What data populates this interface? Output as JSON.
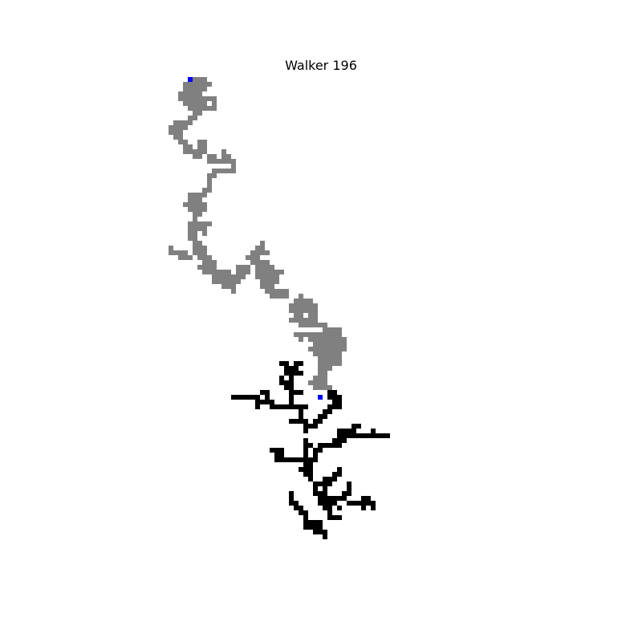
{
  "title": "Walker 196",
  "colors": {
    "background": "#ffffff",
    "walker_path": "#808080",
    "cluster": "#000000",
    "marker": "#0000ff"
  },
  "walker_path": [
    [
      40,
      0
    ],
    [
      41,
      0
    ],
    [
      42,
      0
    ],
    [
      38,
      1
    ],
    [
      39,
      1
    ],
    [
      40,
      1
    ],
    [
      41,
      1
    ],
    [
      42,
      1
    ],
    [
      43,
      1
    ],
    [
      38,
      2
    ],
    [
      39,
      2
    ],
    [
      40,
      2
    ],
    [
      41,
      2
    ],
    [
      42,
      2
    ],
    [
      37,
      3
    ],
    [
      38,
      3
    ],
    [
      39,
      3
    ],
    [
      40,
      3
    ],
    [
      41,
      3
    ],
    [
      37,
      4
    ],
    [
      38,
      4
    ],
    [
      39,
      4
    ],
    [
      40,
      4
    ],
    [
      41,
      4
    ],
    [
      42,
      4
    ],
    [
      43,
      4
    ],
    [
      44,
      4
    ],
    [
      38,
      5
    ],
    [
      39,
      5
    ],
    [
      40,
      5
    ],
    [
      41,
      5
    ],
    [
      42,
      5
    ],
    [
      44,
      5
    ],
    [
      39,
      6
    ],
    [
      40,
      6
    ],
    [
      41,
      6
    ],
    [
      42,
      6
    ],
    [
      43,
      6
    ],
    [
      44,
      6
    ],
    [
      40,
      7
    ],
    [
      41,
      7
    ],
    [
      39,
      8
    ],
    [
      40,
      8
    ],
    [
      36,
      9
    ],
    [
      37,
      9
    ],
    [
      38,
      9
    ],
    [
      39,
      9
    ],
    [
      35,
      10
    ],
    [
      36,
      10
    ],
    [
      37,
      10
    ],
    [
      38,
      10
    ],
    [
      35,
      11
    ],
    [
      36,
      11
    ],
    [
      37,
      11
    ],
    [
      36,
      12
    ],
    [
      37,
      12
    ],
    [
      37,
      13
    ],
    [
      38,
      13
    ],
    [
      41,
      13
    ],
    [
      42,
      13
    ],
    [
      38,
      14
    ],
    [
      39,
      14
    ],
    [
      41,
      14
    ],
    [
      42,
      14
    ],
    [
      38,
      15
    ],
    [
      39,
      15
    ],
    [
      40,
      15
    ],
    [
      41,
      15
    ],
    [
      42,
      15
    ],
    [
      46,
      15
    ],
    [
      40,
      16
    ],
    [
      41,
      16
    ],
    [
      43,
      16
    ],
    [
      44,
      16
    ],
    [
      46,
      16
    ],
    [
      47,
      16
    ],
    [
      43,
      17
    ],
    [
      44,
      17
    ],
    [
      45,
      17
    ],
    [
      46,
      17
    ],
    [
      47,
      17
    ],
    [
      48,
      17
    ],
    [
      48,
      18
    ],
    [
      44,
      19
    ],
    [
      45,
      19
    ],
    [
      46,
      19
    ],
    [
      47,
      19
    ],
    [
      48,
      19
    ],
    [
      43,
      20
    ],
    [
      44,
      20
    ],
    [
      43,
      21
    ],
    [
      43,
      22
    ],
    [
      42,
      23
    ],
    [
      43,
      23
    ],
    [
      39,
      24
    ],
    [
      40,
      24
    ],
    [
      41,
      24
    ],
    [
      42,
      24
    ],
    [
      39,
      25
    ],
    [
      40,
      25
    ],
    [
      41,
      25
    ],
    [
      38,
      26
    ],
    [
      39,
      26
    ],
    [
      40,
      26
    ],
    [
      41,
      26
    ],
    [
      42,
      26
    ],
    [
      39,
      27
    ],
    [
      40,
      27
    ],
    [
      41,
      27
    ],
    [
      42,
      27
    ],
    [
      40,
      28
    ],
    [
      41,
      28
    ],
    [
      40,
      29
    ],
    [
      39,
      30
    ],
    [
      40,
      30
    ],
    [
      41,
      30
    ],
    [
      42,
      30
    ],
    [
      43,
      30
    ],
    [
      39,
      31
    ],
    [
      40,
      31
    ],
    [
      41,
      31
    ],
    [
      42,
      31
    ],
    [
      39,
      32
    ],
    [
      40,
      32
    ],
    [
      42,
      32
    ],
    [
      39,
      33
    ],
    [
      40,
      33
    ],
    [
      40,
      34
    ],
    [
      41,
      34
    ],
    [
      54,
      34
    ],
    [
      35,
      35
    ],
    [
      40,
      35
    ],
    [
      41,
      35
    ],
    [
      42,
      35
    ],
    [
      53,
      35
    ],
    [
      54,
      35
    ],
    [
      35,
      36
    ],
    [
      36,
      36
    ],
    [
      37,
      36
    ],
    [
      38,
      36
    ],
    [
      40,
      36
    ],
    [
      41,
      36
    ],
    [
      42,
      36
    ],
    [
      52,
      36
    ],
    [
      53,
      36
    ],
    [
      54,
      36
    ],
    [
      55,
      36
    ],
    [
      37,
      37
    ],
    [
      38,
      37
    ],
    [
      39,
      37
    ],
    [
      41,
      37
    ],
    [
      42,
      37
    ],
    [
      43,
      37
    ],
    [
      51,
      37
    ],
    [
      52,
      37
    ],
    [
      53,
      37
    ],
    [
      42,
      38
    ],
    [
      43,
      38
    ],
    [
      44,
      38
    ],
    [
      52,
      38
    ],
    [
      53,
      38
    ],
    [
      54,
      38
    ],
    [
      55,
      38
    ],
    [
      41,
      39
    ],
    [
      42,
      39
    ],
    [
      43,
      39
    ],
    [
      44,
      39
    ],
    [
      49,
      39
    ],
    [
      50,
      39
    ],
    [
      51,
      39
    ],
    [
      53,
      39
    ],
    [
      54,
      39
    ],
    [
      55,
      39
    ],
    [
      56,
      39
    ],
    [
      42,
      40
    ],
    [
      43,
      40
    ],
    [
      44,
      40
    ],
    [
      45,
      40
    ],
    [
      46,
      40
    ],
    [
      47,
      40
    ],
    [
      49,
      40
    ],
    [
      50,
      40
    ],
    [
      51,
      40
    ],
    [
      53,
      40
    ],
    [
      54,
      40
    ],
    [
      55,
      40
    ],
    [
      56,
      40
    ],
    [
      57,
      40
    ],
    [
      58,
      40
    ],
    [
      44,
      41
    ],
    [
      45,
      41
    ],
    [
      46,
      41
    ],
    [
      47,
      41
    ],
    [
      48,
      41
    ],
    [
      49,
      41
    ],
    [
      50,
      41
    ],
    [
      53,
      41
    ],
    [
      54,
      41
    ],
    [
      55,
      41
    ],
    [
      56,
      41
    ],
    [
      57,
      41
    ],
    [
      44,
      42
    ],
    [
      45,
      42
    ],
    [
      46,
      42
    ],
    [
      47,
      42
    ],
    [
      48,
      42
    ],
    [
      49,
      42
    ],
    [
      54,
      42
    ],
    [
      55,
      42
    ],
    [
      56,
      42
    ],
    [
      57,
      42
    ],
    [
      46,
      43
    ],
    [
      47,
      43
    ],
    [
      48,
      43
    ],
    [
      54,
      43
    ],
    [
      55,
      43
    ],
    [
      56,
      43
    ],
    [
      48,
      44
    ],
    [
      55,
      44
    ],
    [
      56,
      44
    ],
    [
      57,
      44
    ],
    [
      58,
      44
    ],
    [
      59,
      44
    ],
    [
      56,
      45
    ],
    [
      57,
      45
    ],
    [
      58,
      45
    ],
    [
      59,
      45
    ],
    [
      62,
      45
    ],
    [
      61,
      46
    ],
    [
      62,
      46
    ],
    [
      63,
      46
    ],
    [
      64,
      46
    ],
    [
      60,
      47
    ],
    [
      61,
      47
    ],
    [
      62,
      47
    ],
    [
      63,
      47
    ],
    [
      64,
      47
    ],
    [
      65,
      47
    ],
    [
      60,
      48
    ],
    [
      61,
      48
    ],
    [
      62,
      48
    ],
    [
      63,
      48
    ],
    [
      64,
      48
    ],
    [
      65,
      48
    ],
    [
      61,
      49
    ],
    [
      62,
      49
    ],
    [
      64,
      49
    ],
    [
      65,
      49
    ],
    [
      60,
      50
    ],
    [
      61,
      50
    ],
    [
      62,
      50
    ],
    [
      63,
      50
    ],
    [
      64,
      50
    ],
    [
      65,
      50
    ],
    [
      62,
      51
    ],
    [
      63,
      51
    ],
    [
      64,
      51
    ],
    [
      65,
      51
    ],
    [
      66,
      51
    ],
    [
      67,
      51
    ],
    [
      67,
      52
    ],
    [
      68,
      52
    ],
    [
      69,
      52
    ],
    [
      70,
      52
    ],
    [
      61,
      53
    ],
    [
      62,
      53
    ],
    [
      63,
      53
    ],
    [
      64,
      53
    ],
    [
      65,
      53
    ],
    [
      66,
      53
    ],
    [
      67,
      53
    ],
    [
      68,
      53
    ],
    [
      69,
      53
    ],
    [
      70,
      53
    ],
    [
      62,
      54
    ],
    [
      64,
      54
    ],
    [
      65,
      54
    ],
    [
      66,
      54
    ],
    [
      67,
      54
    ],
    [
      68,
      54
    ],
    [
      69,
      54
    ],
    [
      70,
      54
    ],
    [
      71,
      54
    ],
    [
      65,
      55
    ],
    [
      66,
      55
    ],
    [
      67,
      55
    ],
    [
      68,
      55
    ],
    [
      69,
      55
    ],
    [
      70,
      55
    ],
    [
      71,
      55
    ],
    [
      64,
      56
    ],
    [
      65,
      56
    ],
    [
      66,
      56
    ],
    [
      67,
      56
    ],
    [
      68,
      56
    ],
    [
      69,
      56
    ],
    [
      70,
      56
    ],
    [
      71,
      56
    ],
    [
      65,
      57
    ],
    [
      66,
      57
    ],
    [
      67,
      57
    ],
    [
      68,
      57
    ],
    [
      69,
      57
    ],
    [
      70,
      57
    ],
    [
      66,
      58
    ],
    [
      67,
      58
    ],
    [
      68,
      58
    ],
    [
      69,
      58
    ],
    [
      70,
      58
    ],
    [
      66,
      59
    ],
    [
      67,
      59
    ],
    [
      68,
      59
    ],
    [
      69,
      59
    ],
    [
      70,
      59
    ],
    [
      66,
      60
    ],
    [
      67,
      60
    ],
    [
      68,
      60
    ],
    [
      66,
      61
    ],
    [
      67,
      61
    ],
    [
      65,
      62
    ],
    [
      66,
      62
    ],
    [
      67,
      62
    ],
    [
      64,
      63
    ],
    [
      65,
      63
    ],
    [
      66,
      63
    ],
    [
      67,
      63
    ],
    [
      65,
      64
    ],
    [
      66,
      64
    ],
    [
      67,
      64
    ],
    [
      68,
      64
    ]
  ],
  "cluster": [
    [
      58,
      59
    ],
    [
      59,
      59
    ],
    [
      61,
      59
    ],
    [
      62,
      59
    ],
    [
      59,
      60
    ],
    [
      60,
      60
    ],
    [
      61,
      60
    ],
    [
      59,
      61
    ],
    [
      60,
      61
    ],
    [
      61,
      61
    ],
    [
      62,
      61
    ],
    [
      58,
      62
    ],
    [
      60,
      62
    ],
    [
      58,
      63
    ],
    [
      59,
      63
    ],
    [
      60,
      63
    ],
    [
      59,
      64
    ],
    [
      60,
      64
    ],
    [
      54,
      65
    ],
    [
      55,
      65
    ],
    [
      60,
      65
    ],
    [
      61,
      65
    ],
    [
      62,
      65
    ],
    [
      68,
      65
    ],
    [
      69,
      65
    ],
    [
      48,
      66
    ],
    [
      49,
      66
    ],
    [
      50,
      66
    ],
    [
      51,
      66
    ],
    [
      52,
      66
    ],
    [
      53,
      66
    ],
    [
      55,
      66
    ],
    [
      60,
      66
    ],
    [
      68,
      66
    ],
    [
      69,
      66
    ],
    [
      70,
      66
    ],
    [
      53,
      67
    ],
    [
      54,
      67
    ],
    [
      55,
      67
    ],
    [
      56,
      67
    ],
    [
      60,
      67
    ],
    [
      69,
      67
    ],
    [
      70,
      67
    ],
    [
      53,
      68
    ],
    [
      56,
      68
    ],
    [
      57,
      68
    ],
    [
      58,
      68
    ],
    [
      59,
      68
    ],
    [
      60,
      68
    ],
    [
      61,
      68
    ],
    [
      62,
      68
    ],
    [
      63,
      68
    ],
    [
      68,
      68
    ],
    [
      69,
      68
    ],
    [
      70,
      68
    ],
    [
      62,
      69
    ],
    [
      67,
      69
    ],
    [
      68,
      69
    ],
    [
      62,
      70
    ],
    [
      66,
      70
    ],
    [
      67,
      70
    ],
    [
      60,
      71
    ],
    [
      61,
      71
    ],
    [
      62,
      71
    ],
    [
      63,
      71
    ],
    [
      65,
      71
    ],
    [
      66,
      71
    ],
    [
      63,
      72
    ],
    [
      64,
      72
    ],
    [
      65,
      72
    ],
    [
      73,
      72
    ],
    [
      74,
      72
    ],
    [
      63,
      73
    ],
    [
      70,
      73
    ],
    [
      71,
      73
    ],
    [
      72,
      73
    ],
    [
      73,
      73
    ],
    [
      77,
      73
    ],
    [
      70,
      74
    ],
    [
      71,
      74
    ],
    [
      72,
      74
    ],
    [
      73,
      74
    ],
    [
      74,
      74
    ],
    [
      75,
      74
    ],
    [
      76,
      74
    ],
    [
      77,
      74
    ],
    [
      78,
      74
    ],
    [
      79,
      74
    ],
    [
      80,
      74
    ],
    [
      63,
      75
    ],
    [
      69,
      75
    ],
    [
      70,
      75
    ],
    [
      71,
      75
    ],
    [
      63,
      76
    ],
    [
      64,
      76
    ],
    [
      66,
      76
    ],
    [
      67,
      76
    ],
    [
      68,
      76
    ],
    [
      69,
      76
    ],
    [
      70,
      76
    ],
    [
      56,
      77
    ],
    [
      57,
      77
    ],
    [
      58,
      77
    ],
    [
      63,
      77
    ],
    [
      65,
      77
    ],
    [
      66,
      77
    ],
    [
      57,
      78
    ],
    [
      58,
      78
    ],
    [
      63,
      78
    ],
    [
      65,
      78
    ],
    [
      57,
      79
    ],
    [
      58,
      79
    ],
    [
      59,
      79
    ],
    [
      60,
      79
    ],
    [
      61,
      79
    ],
    [
      62,
      79
    ],
    [
      63,
      79
    ],
    [
      64,
      79
    ],
    [
      65,
      79
    ],
    [
      63,
      80
    ],
    [
      64,
      80
    ],
    [
      62,
      81
    ],
    [
      63,
      81
    ],
    [
      64,
      81
    ],
    [
      70,
      81
    ],
    [
      63,
      82
    ],
    [
      64,
      82
    ],
    [
      69,
      82
    ],
    [
      70,
      82
    ],
    [
      64,
      83
    ],
    [
      67,
      83
    ],
    [
      68,
      83
    ],
    [
      69,
      83
    ],
    [
      65,
      84
    ],
    [
      66,
      84
    ],
    [
      67,
      84
    ],
    [
      68,
      84
    ],
    [
      72,
      84
    ],
    [
      65,
      85
    ],
    [
      67,
      85
    ],
    [
      72,
      85
    ],
    [
      60,
      86
    ],
    [
      65,
      86
    ],
    [
      66,
      86
    ],
    [
      67,
      86
    ],
    [
      71,
      86
    ],
    [
      72,
      86
    ],
    [
      60,
      87
    ],
    [
      66,
      87
    ],
    [
      67,
      87
    ],
    [
      68,
      87
    ],
    [
      69,
      87
    ],
    [
      70,
      87
    ],
    [
      71,
      87
    ],
    [
      75,
      87
    ],
    [
      76,
      87
    ],
    [
      60,
      88
    ],
    [
      61,
      88
    ],
    [
      66,
      88
    ],
    [
      67,
      88
    ],
    [
      68,
      88
    ],
    [
      69,
      88
    ],
    [
      72,
      88
    ],
    [
      73,
      88
    ],
    [
      74,
      88
    ],
    [
      75,
      88
    ],
    [
      76,
      88
    ],
    [
      77,
      88
    ],
    [
      61,
      89
    ],
    [
      62,
      89
    ],
    [
      67,
      89
    ],
    [
      68,
      89
    ],
    [
      70,
      89
    ],
    [
      75,
      89
    ],
    [
      77,
      89
    ],
    [
      62,
      90
    ],
    [
      63,
      90
    ],
    [
      68,
      90
    ],
    [
      63,
      91
    ],
    [
      68,
      91
    ],
    [
      69,
      91
    ],
    [
      70,
      91
    ],
    [
      63,
      92
    ],
    [
      64,
      92
    ],
    [
      65,
      92
    ],
    [
      66,
      92
    ],
    [
      63,
      93
    ],
    [
      64,
      93
    ],
    [
      65,
      93
    ],
    [
      66,
      93
    ],
    [
      65,
      94
    ],
    [
      66,
      94
    ],
    [
      67,
      94
    ],
    [
      67,
      95
    ]
  ],
  "markers": [
    [
      39,
      0
    ],
    [
      66,
      66
    ]
  ]
}
